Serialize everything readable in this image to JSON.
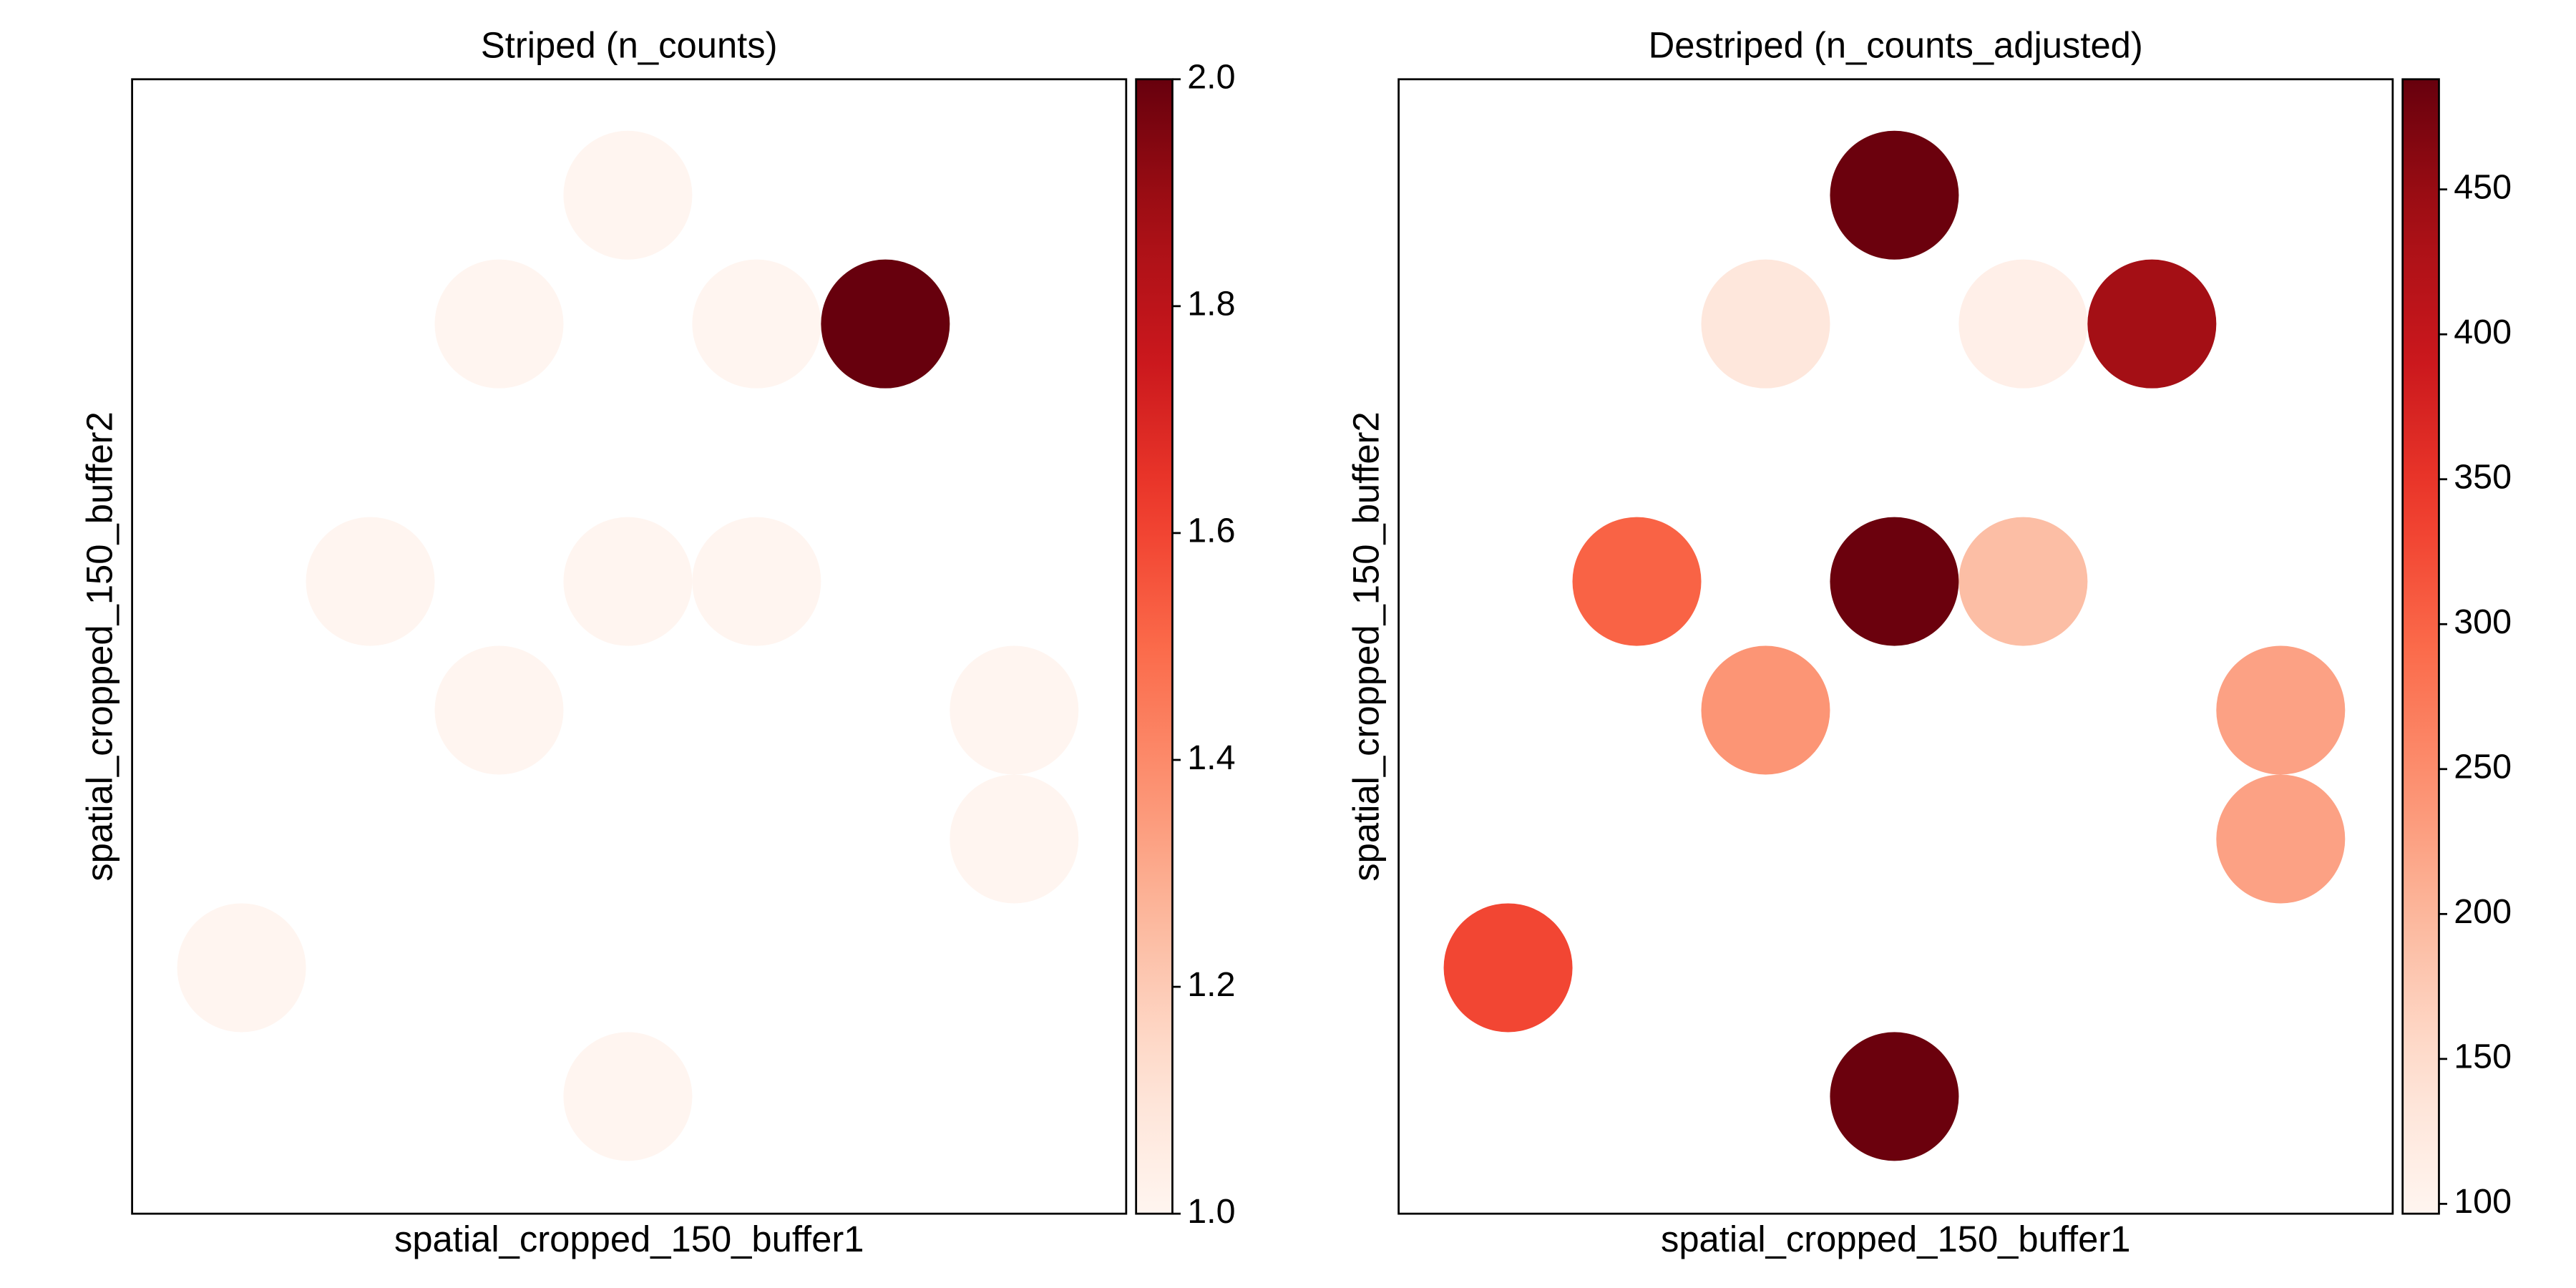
{
  "chart_data": [
    {
      "type": "scatter",
      "title": "Striped (n_counts)",
      "x_label": "spatial_cropped_150_buffer1",
      "y_label": "spatial_cropped_150_buffer2",
      "x": [
        3,
        2,
        4,
        5,
        1,
        3,
        4,
        2,
        6,
        6,
        0,
        3
      ],
      "y": [
        7,
        6,
        6,
        6,
        4,
        4,
        4,
        3,
        3,
        2,
        1,
        0
      ],
      "values": [
        1,
        1,
        1,
        2,
        1,
        1,
        1,
        1,
        1,
        1,
        1,
        1
      ],
      "xlim": [
        -0.85,
        6.87
      ],
      "ylim": [
        -0.91,
        7.9
      ],
      "colormap": "Reds",
      "clim": [
        1,
        2
      ],
      "cticks": [
        {
          "value": 1,
          "label": "1.0"
        },
        {
          "value": 1.2,
          "label": "1.2"
        },
        {
          "value": 1.4,
          "label": "1.4"
        },
        {
          "value": 1.6,
          "label": "1.6"
        },
        {
          "value": 1.8,
          "label": "1.8"
        },
        {
          "value": 2,
          "label": "2.0"
        }
      ]
    },
    {
      "type": "scatter",
      "title": "Destriped (n_counts_adjusted)",
      "x_label": "spatial_cropped_150_buffer1",
      "y_label": "spatial_cropped_150_buffer2",
      "x": [
        3,
        2,
        4,
        5,
        1,
        3,
        4,
        2,
        6,
        6,
        0,
        3
      ],
      "y": [
        7,
        6,
        6,
        6,
        4,
        4,
        4,
        3,
        3,
        2,
        1,
        0
      ],
      "values": [
        485,
        130,
        110,
        440,
        300,
        485,
        190,
        240,
        225,
        225,
        330,
        485
      ],
      "xlim": [
        -0.85,
        6.87
      ],
      "ylim": [
        -0.91,
        7.9
      ],
      "colormap": "Reds",
      "clim": [
        96.6,
        488
      ],
      "cticks": [
        100,
        150,
        200,
        250,
        300,
        350,
        400,
        450
      ]
    }
  ]
}
